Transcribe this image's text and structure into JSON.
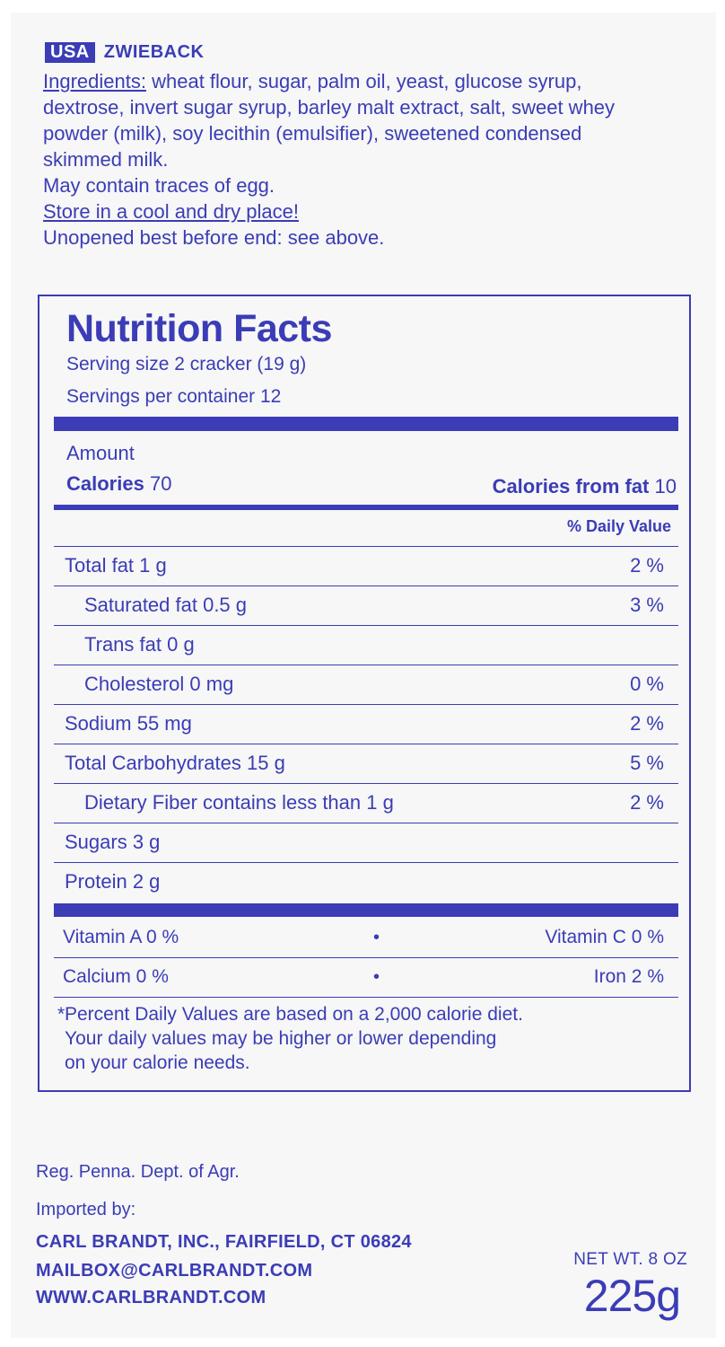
{
  "header": {
    "badge": "USA",
    "product": "ZWIEBACK"
  },
  "ingredients": {
    "label": "Ingredients:",
    "text": "wheat flour, sugar, palm oil, yeast, glucose syrup,",
    "line2": "dextrose, invert sugar syrup, barley malt extract, salt, sweet whey",
    "line3": "powder (milk), soy lecithin (emulsifier), sweetened condensed",
    "line4": "skimmed milk."
  },
  "notes": {
    "traces": "May contain traces of egg.",
    "storage": "Store in a cool and dry place!",
    "best_before": "Unopened best before end: see above."
  },
  "nutrition": {
    "title": "Nutrition Facts",
    "serving_size": "Serving size 2 cracker (19 g)",
    "servings_per_container": "Servings per container 12",
    "amount_label": "Amount",
    "calories_label": "Calories",
    "calories_value": "70",
    "calories_fat_label": "Calories from fat",
    "calories_fat_value": "10",
    "daily_value_header": "% Daily Value",
    "rows": [
      {
        "name": "Total fat 1 g",
        "pct": "2 %"
      },
      {
        "name": "Saturated fat 0.5 g",
        "pct": "3 %"
      },
      {
        "name": "Trans fat 0 g",
        "pct": ""
      },
      {
        "name": "Cholesterol 0 mg",
        "pct": "0 %"
      },
      {
        "name": "Sodium 55 mg",
        "pct": "2 %"
      },
      {
        "name": "Total Carbohydrates 15 g",
        "pct": "5 %"
      },
      {
        "name": "Dietary Fiber contains less than 1 g",
        "pct": "2 %"
      },
      {
        "name": "Sugars 3 g",
        "pct": ""
      },
      {
        "name": "Protein 2 g",
        "pct": ""
      }
    ],
    "vitamins": [
      {
        "left": "Vitamin A  0 %",
        "bullet": "•",
        "right": "Vitamin C 0 %"
      },
      {
        "left": "Calcium 0 %",
        "bullet": "•",
        "right": "Iron 2 %"
      }
    ],
    "footnote_mark": "*",
    "footnote_1": "Percent Daily Values are based on a 2,000 calorie diet.",
    "footnote_2": "Your daily values may be higher or lower depending",
    "footnote_3": "on your calorie needs."
  },
  "footer": {
    "reg": "Reg. Penna. Dept. of Agr.",
    "imported_by": "Imported by:",
    "company": "CARL BRANDT, INC., FAIRFIELD, CT 06824",
    "email": "MAILBOX@CARLBRANDT.COM",
    "website": "WWW.CARLBRANDT.COM",
    "net_wt": "NET WT. 8 OZ",
    "weight": "225g"
  },
  "colors": {
    "ink": "#3b3cb6",
    "panel": "#f6f7f6"
  }
}
